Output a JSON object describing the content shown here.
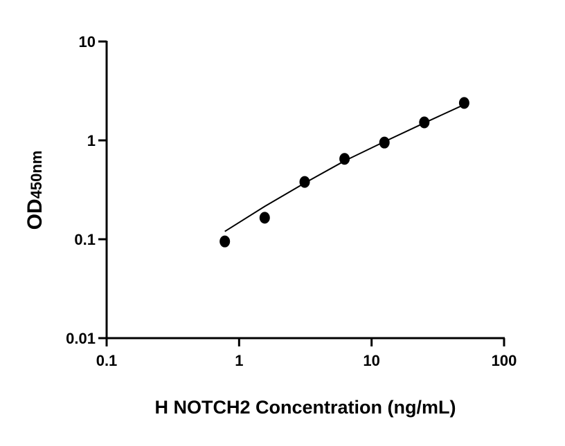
{
  "chart_data": {
    "type": "scatter",
    "title": "",
    "xlabel": "H NOTCH2 Concentration (ng/mL)",
    "ylabel": "OD",
    "ylabel_subscript": "450nm",
    "x_scale": "log",
    "y_scale": "log",
    "xlim": [
      0.1,
      100
    ],
    "ylim": [
      0.01,
      10
    ],
    "x_ticks": [
      "0.1",
      "1",
      "10",
      "100"
    ],
    "y_ticks": [
      "0.01",
      "0.1",
      "1",
      "10"
    ],
    "grid": false,
    "points": {
      "x": [
        0.78,
        1.56,
        3.125,
        6.25,
        12.5,
        25,
        50
      ],
      "y": [
        0.095,
        0.165,
        0.38,
        0.65,
        0.95,
        1.52,
        2.39
      ]
    },
    "fit_curve": {
      "x": [
        0.78,
        1.56,
        3.125,
        6.25,
        12.5,
        25,
        50
      ],
      "y": [
        0.12,
        0.215,
        0.37,
        0.62,
        0.97,
        1.5,
        2.3
      ]
    },
    "colors": {
      "points": "#000000",
      "curve": "#000000",
      "axes": "#000000"
    }
  }
}
